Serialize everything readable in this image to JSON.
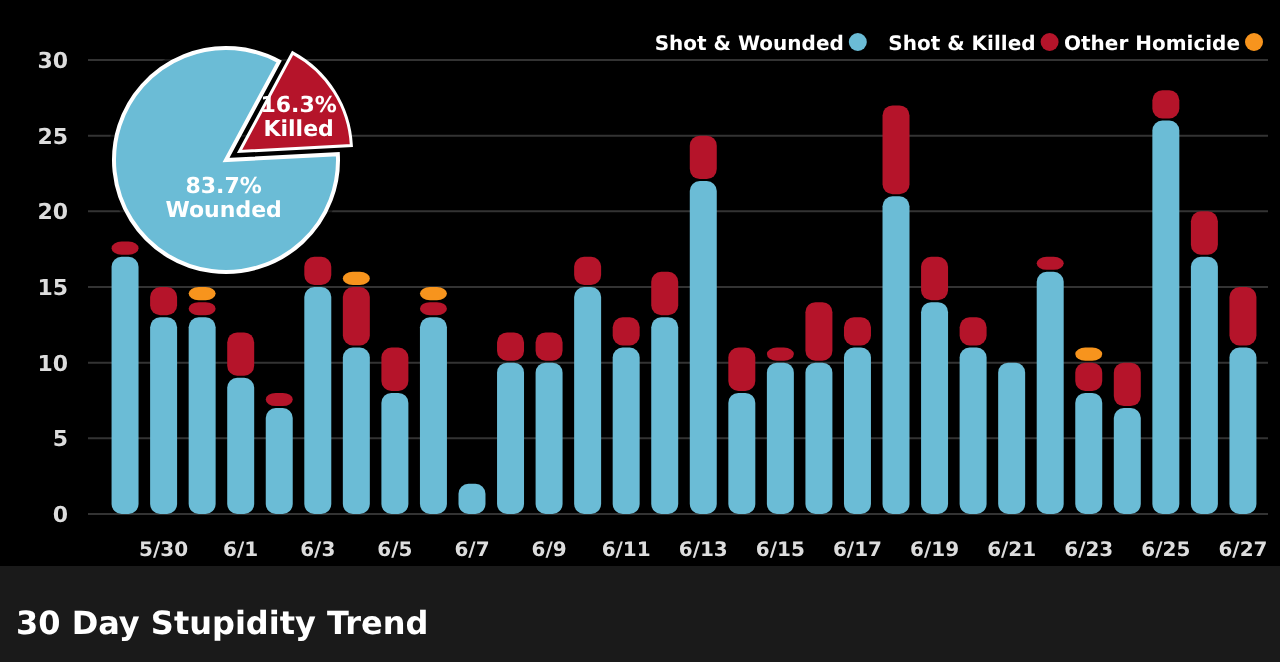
{
  "chart_data": [
    {
      "type": "bar",
      "title": "30 Day Stupidity Trend",
      "stacked": true,
      "categories": [
        null,
        "5/30",
        null,
        "6/1",
        null,
        "6/3",
        null,
        "6/5",
        null,
        "6/7",
        null,
        "6/9",
        null,
        "6/11",
        null,
        "6/13",
        null,
        "6/15",
        null,
        "6/17",
        null,
        "6/19",
        null,
        "6/21",
        null,
        "6/23",
        null,
        "6/25",
        null,
        "6/27"
      ],
      "series": [
        {
          "name": "Shot & Wounded",
          "color": "#6bbcd6",
          "values": [
            17,
            13,
            13,
            9,
            7,
            15,
            11,
            8,
            13,
            2,
            10,
            10,
            15,
            11,
            13,
            22,
            8,
            10,
            10,
            11,
            21,
            14,
            11,
            10,
            16,
            8,
            7,
            26,
            17,
            11
          ]
        },
        {
          "name": "Shot & Killed",
          "color": "#b5142a",
          "values": [
            1,
            2,
            1,
            3,
            1,
            2,
            4,
            3,
            1,
            null,
            2,
            2,
            2,
            2,
            3,
            3,
            3,
            1,
            4,
            2,
            6,
            3,
            2,
            null,
            1,
            2,
            3,
            2,
            3,
            4
          ]
        },
        {
          "name": "Other Homicide",
          "color": "#f7941d",
          "values": [
            null,
            null,
            1,
            null,
            null,
            null,
            1,
            null,
            1,
            null,
            null,
            null,
            null,
            null,
            null,
            null,
            null,
            null,
            null,
            null,
            null,
            null,
            null,
            null,
            null,
            1,
            null,
            null,
            null,
            null
          ]
        }
      ],
      "ylim": [
        0,
        30
      ],
      "yticks": [
        0,
        5,
        10,
        15,
        20,
        25,
        30
      ],
      "grid": "y",
      "legend": "top right"
    },
    {
      "type": "pie",
      "categories": [
        "Wounded",
        "Killed"
      ],
      "values": [
        83.7,
        16.3
      ],
      "value_labels": [
        "83.7%",
        "16.3%"
      ],
      "colors": [
        "#6bbcd6",
        "#b5142a"
      ],
      "data_labels": true
    }
  ]
}
